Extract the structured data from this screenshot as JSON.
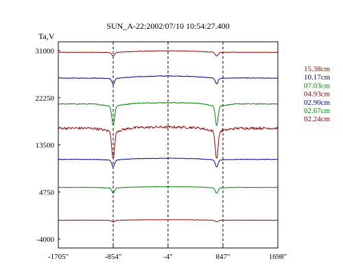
{
  "chart_data": {
    "type": "line",
    "title": "SUN_A-22:2002/07/10 10:54:27.400",
    "ylabel": "Ta,V",
    "xlabel": "",
    "xlim": [
      -1705,
      1698
    ],
    "ylim": [
      -4000,
      33000
    ],
    "x_ticks": [
      -1705,
      -854,
      -4,
      847,
      1698
    ],
    "x_tick_labels": [
      "-1705\"",
      "-854\"",
      "-4\"",
      "847\"",
      "1698\""
    ],
    "y_ticks": [
      31000,
      22250,
      13500,
      4750,
      -4000
    ],
    "y_tick_labels": [
      "31000",
      "22250",
      "13500",
      "4750",
      "-4000"
    ],
    "vlines": [
      -854,
      -4,
      847
    ],
    "grid": false,
    "legend_position": "right",
    "dips": [
      {
        "center": -854,
        "width": 30
      },
      {
        "center": 750,
        "width": 30
      }
    ],
    "series": [
      {
        "name": "15.38cm",
        "color": "#8b0000",
        "baseline": 30700,
        "dip": 700,
        "bump": 350,
        "noise": 80
      },
      {
        "name": "10.17cm",
        "color": "#00008b",
        "baseline": 25900,
        "dip": 1100,
        "bump": 500,
        "noise": 120
      },
      {
        "name": "07.03cm",
        "color": "#008000",
        "baseline": 21100,
        "dip": 3600,
        "bump": 300,
        "noise": 150
      },
      {
        "name": "04.93cm",
        "color": "#8b0000",
        "baseline": 16600,
        "dip": 5200,
        "bump": 250,
        "noise": 450
      },
      {
        "name": "02.90cm",
        "color": "#00008b",
        "baseline": 10800,
        "dip": 1300,
        "bump": 250,
        "noise": 100
      },
      {
        "name": "02.67cm",
        "color": "#008000",
        "baseline": 5600,
        "dip": 1000,
        "bump": 150,
        "noise": 90
      },
      {
        "name": "02.24cm",
        "color": "#8b0000",
        "baseline": -500,
        "dip": 300,
        "bump": 120,
        "noise": 60
      }
    ]
  }
}
